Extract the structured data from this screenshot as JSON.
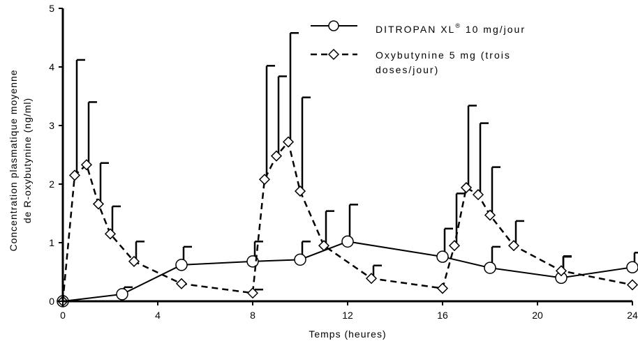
{
  "chart_data": {
    "type": "line",
    "xlabel": "Temps (heures)",
    "ylabel_line1": "Concentration plasmatique moyenne",
    "ylabel_line2": "de R-oxybutynine (ng/ml)",
    "xlim": [
      0,
      24
    ],
    "ylim": [
      0,
      5
    ],
    "xticks": [
      0,
      4,
      8,
      12,
      16,
      20,
      24
    ],
    "yticks": [
      0,
      1,
      2,
      3,
      4,
      5
    ],
    "grid": false,
    "legend_position": "top-right",
    "series": [
      {
        "name": "DITROPAN XL® 10 mg/jour",
        "line_style": "solid",
        "marker": "circle",
        "color": "#000000",
        "x": [
          0,
          2.5,
          5,
          8,
          10,
          12,
          16,
          18,
          21,
          24
        ],
        "y": [
          0.0,
          0.12,
          0.62,
          0.68,
          0.71,
          1.02,
          0.76,
          0.57,
          0.4,
          0.58
        ],
        "err_upper": [
          0.0,
          0.24,
          0.93,
          1.02,
          1.02,
          1.65,
          1.24,
          0.93,
          0.76,
          0.83
        ]
      },
      {
        "name": "Oxybutynine 5 mg (trois doses/jour)",
        "line_style": "dashed",
        "marker": "diamond",
        "color": "#000000",
        "x": [
          0,
          0.5,
          1,
          1.5,
          2,
          3,
          5,
          8,
          8.5,
          9,
          9.5,
          10,
          11,
          13,
          16,
          16.5,
          17,
          17.5,
          18,
          19,
          21,
          24
        ],
        "y": [
          0.0,
          2.15,
          2.33,
          1.66,
          1.15,
          0.68,
          0.3,
          0.14,
          2.08,
          2.48,
          2.72,
          1.88,
          0.95,
          0.39,
          0.22,
          0.95,
          1.94,
          1.82,
          1.47,
          0.95,
          0.52,
          0.28
        ],
        "err_upper": [
          0.0,
          4.12,
          3.4,
          2.36,
          1.62,
          1.02,
          0.0,
          0.2,
          4.02,
          3.84,
          4.58,
          3.48,
          1.54,
          0.61,
          0.0,
          1.84,
          3.34,
          3.04,
          2.29,
          1.37,
          0.77,
          0.0
        ]
      }
    ]
  },
  "legend": {
    "s1_label": "DITROPAN XL",
    "s1_sup": "®",
    "s1_rest": " 10 mg/jour",
    "s2_line1": "Oxybutynine 5 mg (trois",
    "s2_line2": "doses/jour)"
  }
}
